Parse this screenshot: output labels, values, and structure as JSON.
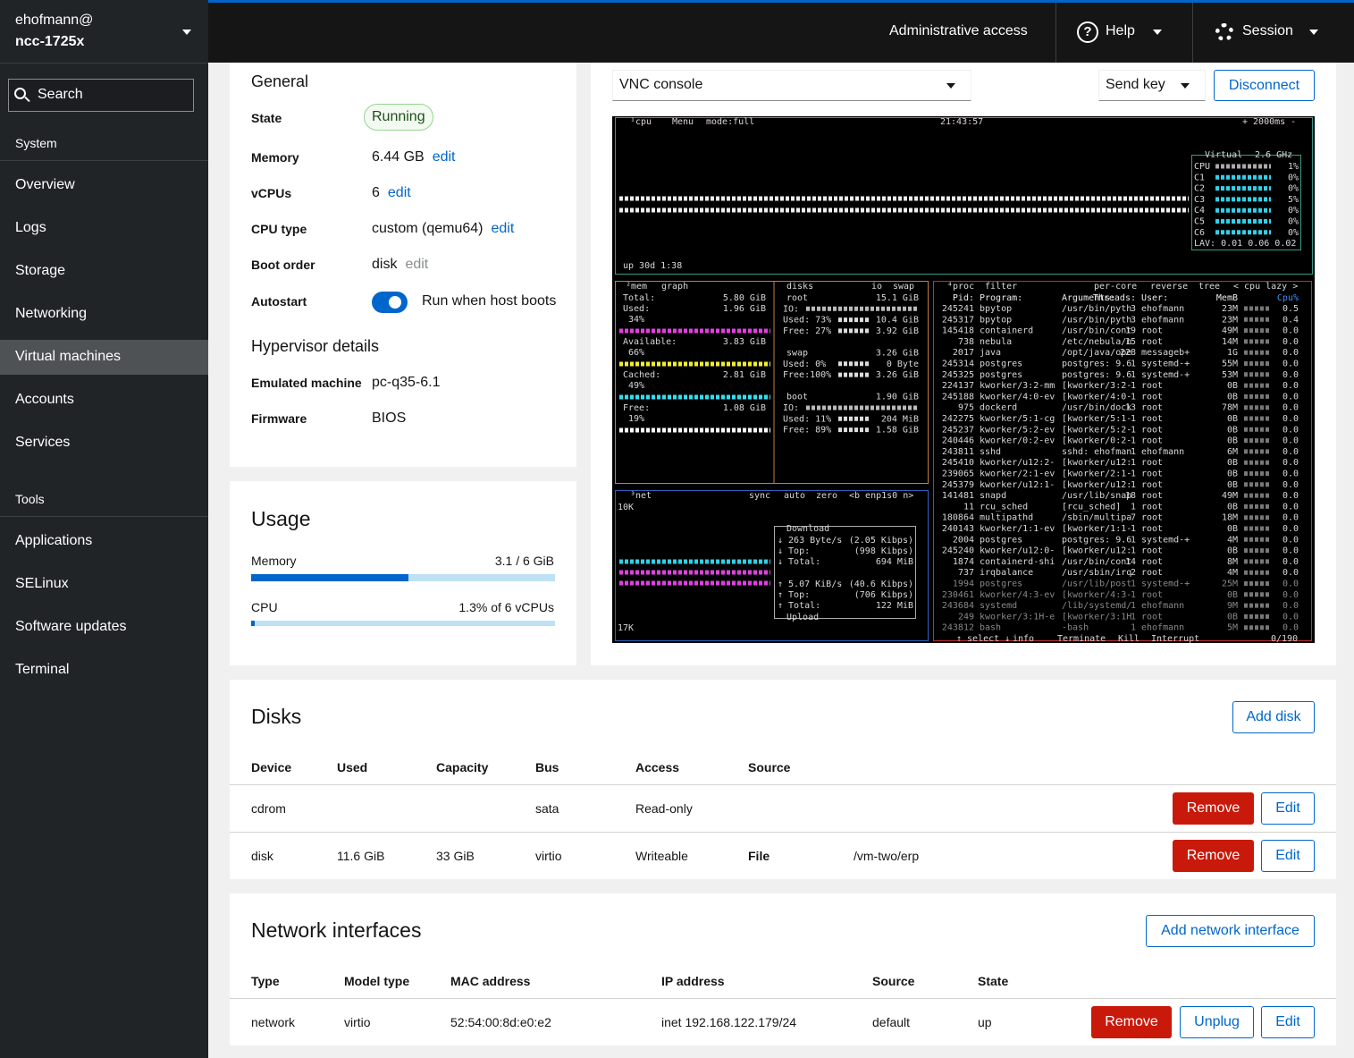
{
  "sidebar": {
    "user": "ehofmann@",
    "host": "ncc-1725x",
    "search": "Search",
    "sections": [
      {
        "title": "System",
        "items": [
          {
            "label": "Overview"
          },
          {
            "label": "Logs"
          },
          {
            "label": "Storage"
          },
          {
            "label": "Networking"
          },
          {
            "label": "Virtual machines",
            "active": true
          },
          {
            "label": "Accounts"
          },
          {
            "label": "Services"
          }
        ]
      },
      {
        "title": "Tools",
        "items": [
          {
            "label": "Applications"
          },
          {
            "label": "SELinux"
          },
          {
            "label": "Software updates"
          },
          {
            "label": "Terminal"
          }
        ]
      }
    ]
  },
  "topbar": {
    "access": "Administrative access",
    "help": "Help",
    "session": "Session"
  },
  "general": {
    "title": "General",
    "rows": [
      {
        "label": "State",
        "value": "Running",
        "style": "badge"
      },
      {
        "label": "Memory",
        "value": "6.44 GB",
        "action": "edit"
      },
      {
        "label": "vCPUs",
        "value": "6",
        "action": "edit"
      },
      {
        "label": "CPU type",
        "value": "custom (qemu64)",
        "action": "edit"
      },
      {
        "label": "Boot order",
        "value": "disk",
        "action": "edit",
        "action_disabled": true
      },
      {
        "label": "Autostart",
        "value": "Run when host boots",
        "style": "switch"
      }
    ],
    "hypervisor": {
      "title": "Hypervisor details",
      "rows": [
        {
          "label": "Emulated machine",
          "value": "pc-q35-6.1"
        },
        {
          "label": "Firmware",
          "value": "BIOS"
        }
      ]
    }
  },
  "usage": {
    "title": "Usage",
    "bars": [
      {
        "label": "Memory",
        "value_label": "3.1 / 6 GiB",
        "value": 3.1,
        "max": 6
      },
      {
        "label": "CPU",
        "value_label": "1.3% of 6 vCPUs",
        "value": 1.3,
        "max": 100
      }
    ]
  },
  "console": {
    "type_select": "VNC console",
    "send_key": "Send key",
    "disconnect": "Disconnect",
    "terminal": {
      "cpu": {
        "title": "¹cpu",
        "menu": "Menu",
        "mode": "mode:full",
        "clock": "21:43:57",
        "rate": "+ 2000ms -",
        "box_title": "Virtual",
        "freq": "2.6 GHz",
        "cores": [
          [
            "CPU",
            "1%"
          ],
          [
            "C1",
            "0%"
          ],
          [
            "C2",
            "0%"
          ],
          [
            "C3",
            "5%"
          ],
          [
            "C4",
            "0%"
          ],
          [
            "C5",
            "0%"
          ],
          [
            "C6",
            "0%"
          ]
        ],
        "lav": "LAV: 0.01 0.06 0.02",
        "uptime": "up 30d 1:38"
      },
      "mem": {
        "title": "²mem",
        "graph": "graph",
        "rows": [
          {
            "label": "Total:",
            "value": "5.80 GiB"
          },
          {
            "label": "Used:",
            "value": "1.96 GiB",
            "percent": "34%",
            "color": "#e040e0"
          },
          {
            "label": "Available:",
            "value": "3.83 GiB",
            "percent": "66%",
            "color": "#f0f030"
          },
          {
            "label": "Cached:",
            "value": "2.81 GiB",
            "percent": "49%",
            "color": "#30e0f0"
          },
          {
            "label": "Free:",
            "value": "1.08 GiB",
            "percent": "19%",
            "color": "#ffffff"
          }
        ]
      },
      "disks": {
        "title": "disks",
        "io": "io",
        "swap": "swap",
        "items": [
          {
            "name": "root",
            "size": "15.1 GiB",
            "io": "IO:",
            "used": [
              "Used: 73%",
              "10.4 GiB"
            ],
            "free": [
              "Free: 27%",
              "3.92 GiB"
            ]
          },
          {
            "name": "swap",
            "size": "3.26 GiB",
            "used": [
              "Used:  0%",
              "0 Byte"
            ],
            "free": [
              "Free:100%",
              "3.26 GiB"
            ]
          },
          {
            "name": "boot",
            "size": "1.90 GiB",
            "io": "IO:",
            "used": [
              "Used: 11%",
              "204 MiB"
            ],
            "free": [
              "Free: 89%",
              "1.58 GiB"
            ]
          }
        ]
      },
      "net": {
        "title": "³net",
        "buttons": [
          "sync",
          "auto",
          "zero",
          "<b enp1s0 n>"
        ],
        "scale_top": "10K",
        "scale_bottom": "17K",
        "download": "Download",
        "upload": "Upload",
        "rows": [
          [
            "↓ 263 Byte/s",
            "(2.05 Kibps)"
          ],
          [
            "↓ Top:",
            "(998 Kibps)"
          ],
          [
            "↓ Total:",
            "694 MiB"
          ],
          [
            "↑ 5.07 KiB/s",
            "(40.6 Kibps)"
          ],
          [
            "↑ Top:",
            "(706 Kibps)"
          ],
          [
            "↑ Total:",
            "122 MiB"
          ]
        ]
      },
      "proc": {
        "title": "⁴proc",
        "filter": "filter",
        "options": [
          "per-core",
          "reverse",
          "tree",
          "< cpu lazy >"
        ],
        "columns": [
          "Pid:",
          "Program:",
          "Arguments:",
          "Threads:",
          "User:",
          "MemB",
          "Cpu%"
        ],
        "rows": [
          [
            "245241",
            "bpytop",
            "/usr/bin/pyth",
            "3",
            "ehofmann",
            "23M",
            "0.5"
          ],
          [
            "245317",
            "bpytop",
            "/usr/bin/pyth",
            "3",
            "ehofmann",
            "23M",
            "0.4"
          ],
          [
            "145418",
            "containerd",
            "/usr/bin/cont",
            "19",
            "root",
            "49M",
            "0.0"
          ],
          [
            "738",
            "nebula",
            "/etc/nebula/n",
            "15",
            "root",
            "14M",
            "0.0"
          ],
          [
            "2017",
            "java",
            "/opt/java/ope",
            "228",
            "messageb+",
            "1G",
            "0.0"
          ],
          [
            "245314",
            "postgres",
            "postgres: 9.6",
            "1",
            "systemd-+",
            "55M",
            "0.0"
          ],
          [
            "245325",
            "postgres",
            "postgres: 9.6",
            "1",
            "systemd-+",
            "53M",
            "0.0"
          ],
          [
            "224137",
            "kworker/3:2-mm",
            "[kworker/3:2-",
            "1",
            "root",
            "0B",
            "0.0"
          ],
          [
            "245188",
            "kworker/4:0-ev",
            "[kworker/4:0-",
            "1",
            "root",
            "0B",
            "0.0"
          ],
          [
            "975",
            "dockerd",
            "/usr/bin/dock",
            "13",
            "root",
            "78M",
            "0.0"
          ],
          [
            "242275",
            "kworker/5:1-cg",
            "[kworker/5:1-",
            "1",
            "root",
            "0B",
            "0.0"
          ],
          [
            "245237",
            "kworker/5:2-ev",
            "[kworker/5:2-",
            "1",
            "root",
            "0B",
            "0.0"
          ],
          [
            "240446",
            "kworker/0:2-ev",
            "[kworker/0:2-",
            "1",
            "root",
            "0B",
            "0.0"
          ],
          [
            "243811",
            "sshd",
            "sshd: ehofman",
            "1",
            "ehofmann",
            "6M",
            "0.0"
          ],
          [
            "245410",
            "kworker/u12:2-",
            "[kworker/u12:",
            "1",
            "root",
            "0B",
            "0.0"
          ],
          [
            "239065",
            "kworker/2:1-ev",
            "[kworker/2:1-",
            "1",
            "root",
            "0B",
            "0.0"
          ],
          [
            "245379",
            "kworker/u12:1-",
            "[kworker/u12:",
            "1",
            "root",
            "0B",
            "0.0"
          ],
          [
            "141481",
            "snapd",
            "/usr/lib/snap",
            "18",
            "root",
            "49M",
            "0.0"
          ],
          [
            "11",
            "rcu_sched",
            "[rcu_sched]",
            "1",
            "root",
            "0B",
            "0.0"
          ],
          [
            "180864",
            "multipathd",
            "/sbin/multipa",
            "7",
            "root",
            "18M",
            "0.0"
          ],
          [
            "240143",
            "kworker/1:1-ev",
            "[kworker/1:1-",
            "1",
            "root",
            "0B",
            "0.0"
          ],
          [
            "2004",
            "postgres",
            "postgres: 9.6",
            "1",
            "systemd-+",
            "4M",
            "0.0"
          ],
          [
            "245240",
            "kworker/u12:0-",
            "[kworker/u12:",
            "1",
            "root",
            "0B",
            "0.0"
          ],
          [
            "1874",
            "containerd-shi",
            "/usr/bin/cont",
            "14",
            "root",
            "8M",
            "0.0"
          ],
          [
            "737",
            "irqbalance",
            "/usr/sbin/irq",
            "2",
            "root",
            "4M",
            "0.0"
          ],
          [
            "1994",
            "postgres",
            "/usr/lib/post",
            "1",
            "systemd-+",
            "25M",
            "0.0"
          ],
          [
            "230461",
            "kworker/4:3-ev",
            "[kworker/4:3-",
            "1",
            "root",
            "0B",
            "0.0"
          ],
          [
            "243684",
            "systemd",
            "/lib/systemd/",
            "1",
            "ehofmann",
            "9M",
            "0.0"
          ],
          [
            "249",
            "kworker/3:1H-e",
            "[kworker/3:1H",
            "1",
            "root",
            "0B",
            "0.0"
          ],
          [
            "243812",
            "bash",
            "-bash",
            "1",
            "ehofmann",
            "5M",
            "0.0"
          ]
        ],
        "footer": [
          "↑ select ↓",
          "info",
          "Terminate",
          "Kill",
          "Interrupt",
          "0/190"
        ]
      }
    }
  },
  "disks": {
    "title": "Disks",
    "add": "Add disk",
    "columns": [
      "Device",
      "Used",
      "Capacity",
      "Bus",
      "Access",
      "Source"
    ],
    "rows": [
      {
        "cells": [
          "cdrom",
          null,
          null,
          "sata",
          "Read-only",
          null,
          null
        ],
        "actions": [
          "Remove",
          "Edit"
        ]
      },
      {
        "cells": [
          "disk",
          "11.6 GiB",
          "33 GiB",
          "virtio",
          "Writeable",
          "File",
          "/vm-two/erp"
        ],
        "actions": [
          "Remove",
          "Edit"
        ]
      }
    ]
  },
  "network": {
    "title": "Network interfaces",
    "add": "Add network interface",
    "columns": [
      "Type",
      "Model type",
      "MAC address",
      "IP address",
      "Source",
      "State"
    ],
    "rows": [
      {
        "cells": [
          "network",
          "virtio",
          "52:54:00:8d:e0:e2",
          "inet 192.168.122.179/24",
          "default",
          "up"
        ],
        "actions": [
          "Remove",
          "Unplug",
          "Edit"
        ]
      }
    ]
  }
}
